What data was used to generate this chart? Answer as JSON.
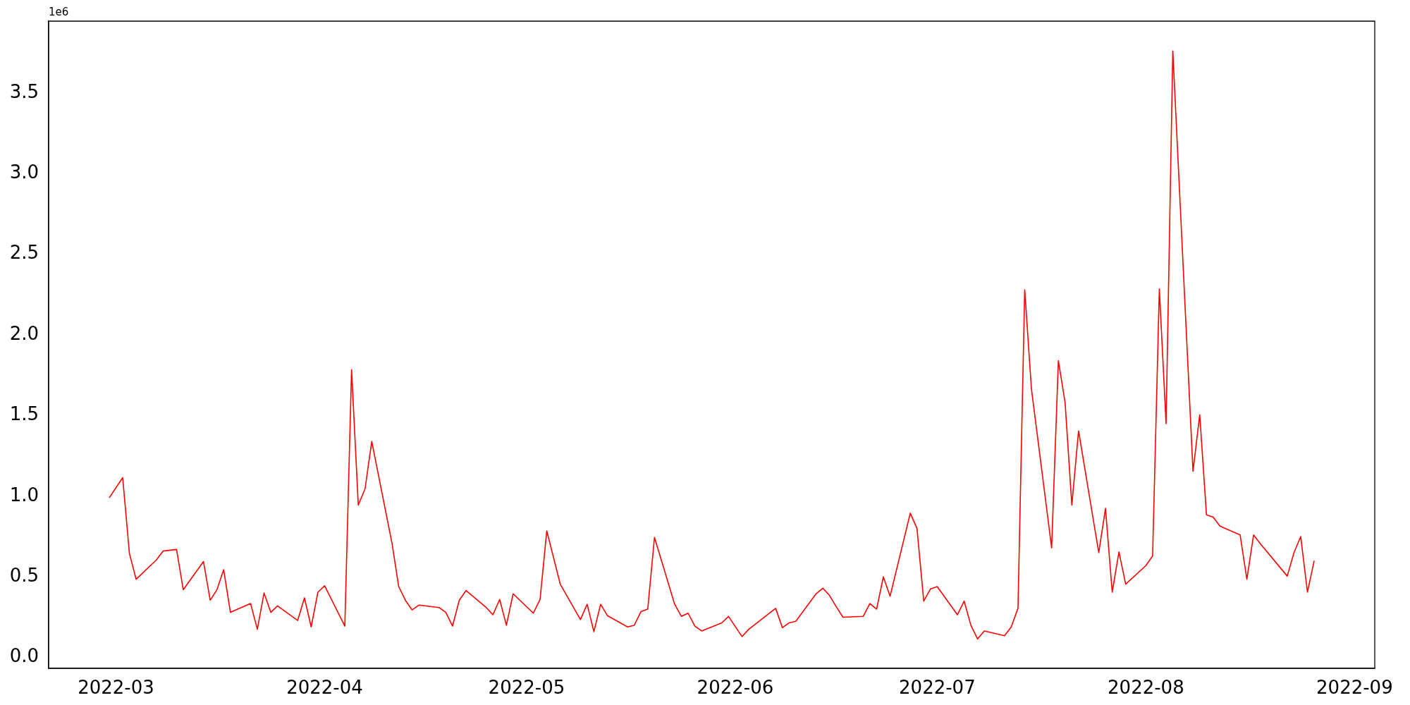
{
  "chart_data": {
    "type": "line",
    "annotations": [
      "1e6"
    ],
    "x": [
      "2022-02-28",
      "2022-03-02",
      "2022-03-03",
      "2022-03-04",
      "2022-03-07",
      "2022-03-08",
      "2022-03-10",
      "2022-03-11",
      "2022-03-14",
      "2022-03-15",
      "2022-03-16",
      "2022-03-17",
      "2022-03-18",
      "2022-03-21",
      "2022-03-22",
      "2022-03-23",
      "2022-03-24",
      "2022-03-25",
      "2022-03-28",
      "2022-03-29",
      "2022-03-30",
      "2022-03-31",
      "2022-04-01",
      "2022-04-04",
      "2022-04-05",
      "2022-04-06",
      "2022-04-07",
      "2022-04-08",
      "2022-04-11",
      "2022-04-12",
      "2022-04-13",
      "2022-04-14",
      "2022-04-15",
      "2022-04-18",
      "2022-04-19",
      "2022-04-20",
      "2022-04-21",
      "2022-04-22",
      "2022-04-25",
      "2022-04-26",
      "2022-04-27",
      "2022-04-28",
      "2022-04-29",
      "2022-05-02",
      "2022-05-03",
      "2022-05-04",
      "2022-05-06",
      "2022-05-09",
      "2022-05-10",
      "2022-05-11",
      "2022-05-12",
      "2022-05-13",
      "2022-05-16",
      "2022-05-17",
      "2022-05-18",
      "2022-05-19",
      "2022-05-20",
      "2022-05-23",
      "2022-05-24",
      "2022-05-25",
      "2022-05-26",
      "2022-05-27",
      "2022-05-30",
      "2022-05-31",
      "2022-06-02",
      "2022-06-03",
      "2022-06-07",
      "2022-06-08",
      "2022-06-09",
      "2022-06-10",
      "2022-06-13",
      "2022-06-14",
      "2022-06-15",
      "2022-06-16",
      "2022-06-17",
      "2022-06-20",
      "2022-06-21",
      "2022-06-22",
      "2022-06-23",
      "2022-06-24",
      "2022-06-27",
      "2022-06-28",
      "2022-06-29",
      "2022-06-30",
      "2022-07-01",
      "2022-07-04",
      "2022-07-05",
      "2022-07-06",
      "2022-07-07",
      "2022-07-08",
      "2022-07-11",
      "2022-07-12",
      "2022-07-13",
      "2022-07-14",
      "2022-07-15",
      "2022-07-18",
      "2022-07-19",
      "2022-07-20",
      "2022-07-21",
      "2022-07-22",
      "2022-07-25",
      "2022-07-26",
      "2022-07-27",
      "2022-07-28",
      "2022-07-29",
      "2022-08-01",
      "2022-08-02",
      "2022-08-03",
      "2022-08-04",
      "2022-08-05",
      "2022-08-08",
      "2022-08-09",
      "2022-08-10",
      "2022-08-11",
      "2022-08-12",
      "2022-08-15",
      "2022-08-16",
      "2022-08-17",
      "2022-08-18",
      "2022-08-22",
      "2022-08-23",
      "2022-08-24",
      "2022-08-25",
      "2022-08-26"
    ],
    "series": [
      {
        "color": "#ff0000",
        "values": [
          0.99,
          1.115,
          0.645,
          0.485,
          0.605,
          0.66,
          0.67,
          0.42,
          0.595,
          0.355,
          0.42,
          0.545,
          0.28,
          0.335,
          0.175,
          0.4,
          0.28,
          0.32,
          0.23,
          0.37,
          0.19,
          0.405,
          0.445,
          0.195,
          1.785,
          0.945,
          1.045,
          1.34,
          0.71,
          0.44,
          0.355,
          0.295,
          0.325,
          0.31,
          0.28,
          0.195,
          0.355,
          0.415,
          0.31,
          0.265,
          0.36,
          0.2,
          0.395,
          0.275,
          0.36,
          0.785,
          0.455,
          0.235,
          0.33,
          0.16,
          0.33,
          0.26,
          0.19,
          0.2,
          0.285,
          0.3,
          0.745,
          0.33,
          0.255,
          0.275,
          0.195,
          0.165,
          0.215,
          0.255,
          0.13,
          0.175,
          0.305,
          0.185,
          0.215,
          0.225,
          0.395,
          0.43,
          0.385,
          0.315,
          0.25,
          0.255,
          0.335,
          0.3,
          0.5,
          0.38,
          0.895,
          0.8,
          0.35,
          0.425,
          0.44,
          0.265,
          0.35,
          0.2,
          0.115,
          0.165,
          0.135,
          0.19,
          0.305,
          2.28,
          1.665,
          0.68,
          1.84,
          1.58,
          0.945,
          1.405,
          0.65,
          0.925,
          0.405,
          0.655,
          0.455,
          0.57,
          0.63,
          2.285,
          1.45,
          3.76,
          1.155,
          1.505,
          0.885,
          0.87,
          0.815,
          0.76,
          0.485,
          0.76,
          0.705,
          0.505,
          0.65,
          0.75,
          0.405,
          0.6
        ]
      }
    ],
    "xlim": [
      "2022-02-19",
      "2022-09-04"
    ],
    "xticks": [
      "2022-03",
      "2022-04",
      "2022-05",
      "2022-06",
      "2022-07",
      "2022-08",
      "2022-09"
    ],
    "ylim": [
      -0.067,
      3.945
    ],
    "yticks": [
      {
        "value": 0,
        "label": "0.0"
      },
      0.5,
      {
        "value": 1,
        "label": "1.0"
      },
      1.5,
      {
        "value": 2,
        "label": "2.0"
      },
      2.5,
      {
        "value": 3,
        "label": "3.0"
      },
      3.5
    ],
    "grid": false,
    "legend": false,
    "marker": "none",
    "line_style": "solid"
  }
}
